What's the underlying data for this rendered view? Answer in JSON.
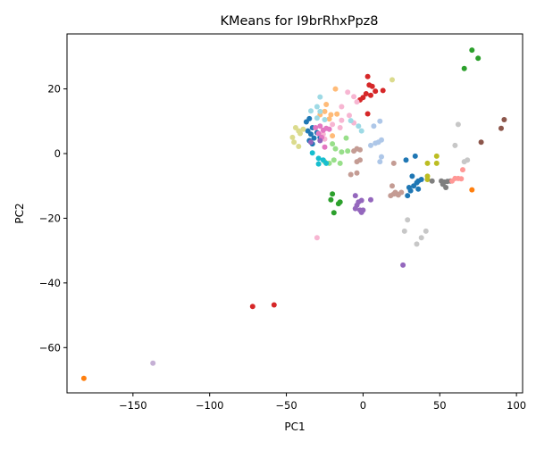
{
  "chart_data": {
    "type": "scatter",
    "title": "KMeans for I9brRhxPpz8",
    "xlabel": "PC1",
    "ylabel": "PC2",
    "xlim": [
      -193,
      104
    ],
    "ylim": [
      -74,
      37
    ],
    "x_ticks": [
      -150,
      -100,
      -50,
      0,
      50,
      100
    ],
    "y_ticks": [
      -60,
      -40,
      -20,
      0,
      20
    ],
    "grid": false,
    "legend": "none",
    "points": [
      {
        "x": -182,
        "y": -69.5,
        "color": "#ff7f0e"
      },
      {
        "x": -137,
        "y": -64.8,
        "color": "#c5b0d5"
      },
      {
        "x": -72,
        "y": -47.3,
        "color": "#d62728"
      },
      {
        "x": -58,
        "y": -46.8,
        "color": "#d62728"
      },
      {
        "x": -30,
        "y": -26.0,
        "color": "#f7b6d2"
      },
      {
        "x": 26,
        "y": -34.5,
        "color": "#9467bd"
      },
      {
        "x": 71,
        "y": 32.0,
        "color": "#2ca02c"
      },
      {
        "x": 75,
        "y": 29.5,
        "color": "#2ca02c"
      },
      {
        "x": 66,
        "y": 26.3,
        "color": "#2ca02c"
      },
      {
        "x": 19,
        "y": 22.8,
        "color": "#dbdb8d"
      },
      {
        "x": 3,
        "y": 23.8,
        "color": "#d62728"
      },
      {
        "x": 4,
        "y": 21.2,
        "color": "#d62728"
      },
      {
        "x": 6,
        "y": 20.8,
        "color": "#d62728"
      },
      {
        "x": 8,
        "y": 19.3,
        "color": "#d62728"
      },
      {
        "x": 13,
        "y": 19.5,
        "color": "#d62728"
      },
      {
        "x": 2,
        "y": 18.5,
        "color": "#d62728"
      },
      {
        "x": 5,
        "y": 18.0,
        "color": "#d62728"
      },
      {
        "x": 0,
        "y": 17.3,
        "color": "#d62728"
      },
      {
        "x": -2,
        "y": 16.6,
        "color": "#d62728"
      },
      {
        "x": 3,
        "y": 12.3,
        "color": "#d62728"
      },
      {
        "x": -10,
        "y": 19.0,
        "color": "#f7b6d2"
      },
      {
        "x": -6,
        "y": 17.6,
        "color": "#f7b6d2"
      },
      {
        "x": -4,
        "y": 16.0,
        "color": "#f7b6d2"
      },
      {
        "x": -14,
        "y": 14.5,
        "color": "#f7b6d2"
      },
      {
        "x": -9,
        "y": 11.8,
        "color": "#f7b6d2"
      },
      {
        "x": -14,
        "y": 10.3,
        "color": "#f7b6d2"
      },
      {
        "x": -6,
        "y": 9.5,
        "color": "#f7b6d2"
      },
      {
        "x": -20,
        "y": 9.0,
        "color": "#f7b6d2"
      },
      {
        "x": -15,
        "y": 8.0,
        "color": "#f7b6d2"
      },
      {
        "x": -25,
        "y": 4.5,
        "color": "#f7b6d2"
      },
      {
        "x": -26,
        "y": 6.0,
        "color": "#f7b6d2"
      },
      {
        "x": -18,
        "y": 20.0,
        "color": "#ffbb78"
      },
      {
        "x": -24,
        "y": 15.2,
        "color": "#ffbb78"
      },
      {
        "x": -25,
        "y": 13.0,
        "color": "#ffbb78"
      },
      {
        "x": -21,
        "y": 12.0,
        "color": "#ffbb78"
      },
      {
        "x": -17,
        "y": 12.2,
        "color": "#ffbb78"
      },
      {
        "x": -22,
        "y": 10.7,
        "color": "#ffbb78"
      },
      {
        "x": -28,
        "y": 12.0,
        "color": "#ffbb78"
      },
      {
        "x": -20,
        "y": 5.5,
        "color": "#ffbb78"
      },
      {
        "x": -28,
        "y": 17.5,
        "color": "#9edae5"
      },
      {
        "x": -34,
        "y": 13.2,
        "color": "#9edae5"
      },
      {
        "x": -30,
        "y": 14.5,
        "color": "#9edae5"
      },
      {
        "x": -28,
        "y": 13.0,
        "color": "#9edae5"
      },
      {
        "x": -30,
        "y": 11.0,
        "color": "#9edae5"
      },
      {
        "x": -25,
        "y": 10.5,
        "color": "#9edae5"
      },
      {
        "x": -3,
        "y": 8.5,
        "color": "#9edae5"
      },
      {
        "x": -1,
        "y": 7.0,
        "color": "#9edae5"
      },
      {
        "x": -8,
        "y": 10.2,
        "color": "#9edae5"
      },
      {
        "x": -37,
        "y": 9.8,
        "color": "#1f77b4"
      },
      {
        "x": -35,
        "y": 10.8,
        "color": "#1f77b4"
      },
      {
        "x": -33,
        "y": 8.0,
        "color": "#1f77b4"
      },
      {
        "x": -36,
        "y": 7.0,
        "color": "#1f77b4"
      },
      {
        "x": -34,
        "y": 6.0,
        "color": "#1f77b4"
      },
      {
        "x": -32,
        "y": 4.8,
        "color": "#1f77b4"
      },
      {
        "x": -35,
        "y": 4.0,
        "color": "#1f77b4"
      },
      {
        "x": -30,
        "y": 6.5,
        "color": "#1f77b4"
      },
      {
        "x": -28,
        "y": 5.0,
        "color": "#1f77b4"
      },
      {
        "x": -33,
        "y": 3.0,
        "color": "#1f77b4"
      },
      {
        "x": -44,
        "y": 8.0,
        "color": "#dbdb8d"
      },
      {
        "x": -42,
        "y": 7.0,
        "color": "#dbdb8d"
      },
      {
        "x": -41,
        "y": 6.2,
        "color": "#dbdb8d"
      },
      {
        "x": -46,
        "y": 5.0,
        "color": "#dbdb8d"
      },
      {
        "x": -45,
        "y": 3.5,
        "color": "#dbdb8d"
      },
      {
        "x": -42,
        "y": 2.2,
        "color": "#dbdb8d"
      },
      {
        "x": -39,
        "y": 7.5,
        "color": "#dbdb8d"
      },
      {
        "x": -28,
        "y": 8.5,
        "color": "#e377c2"
      },
      {
        "x": -26,
        "y": 7.2,
        "color": "#e377c2"
      },
      {
        "x": -24,
        "y": 7.8,
        "color": "#e377c2"
      },
      {
        "x": -29,
        "y": 6.2,
        "color": "#e377c2"
      },
      {
        "x": -27,
        "y": 5.0,
        "color": "#e377c2"
      },
      {
        "x": -22,
        "y": 7.5,
        "color": "#e377c2"
      },
      {
        "x": -31,
        "y": 8.0,
        "color": "#e377c2"
      },
      {
        "x": -25,
        "y": 2.0,
        "color": "#e377c2"
      },
      {
        "x": -28,
        "y": 4.0,
        "color": "#9467bd"
      },
      {
        "x": -34,
        "y": 3.5,
        "color": "#9467bd"
      },
      {
        "x": -20,
        "y": 3.0,
        "color": "#98df8a"
      },
      {
        "x": -18,
        "y": 1.5,
        "color": "#98df8a"
      },
      {
        "x": -11,
        "y": 4.8,
        "color": "#98df8a"
      },
      {
        "x": -14,
        "y": 0.5,
        "color": "#98df8a"
      },
      {
        "x": -10,
        "y": 0.8,
        "color": "#98df8a"
      },
      {
        "x": -22,
        "y": -3.0,
        "color": "#98df8a"
      },
      {
        "x": -19,
        "y": -2.0,
        "color": "#98df8a"
      },
      {
        "x": -15,
        "y": -3.0,
        "color": "#98df8a"
      },
      {
        "x": -25,
        "y": -2.5,
        "color": "#98df8a"
      },
      {
        "x": -33,
        "y": 0.2,
        "color": "#17becf"
      },
      {
        "x": -29,
        "y": -1.5,
        "color": "#17becf"
      },
      {
        "x": -26,
        "y": -2.0,
        "color": "#17becf"
      },
      {
        "x": -29,
        "y": -3.2,
        "color": "#17becf"
      },
      {
        "x": -24,
        "y": -3.0,
        "color": "#17becf"
      },
      {
        "x": -4,
        "y": 1.5,
        "color": "#c49c94"
      },
      {
        "x": -6,
        "y": 0.8,
        "color": "#c49c94"
      },
      {
        "x": -2,
        "y": 1.2,
        "color": "#c49c94"
      },
      {
        "x": -4,
        "y": -2.5,
        "color": "#c49c94"
      },
      {
        "x": -2,
        "y": -2.0,
        "color": "#c49c94"
      },
      {
        "x": -8,
        "y": -6.5,
        "color": "#c49c94"
      },
      {
        "x": -4,
        "y": -6.0,
        "color": "#c49c94"
      },
      {
        "x": 20,
        "y": -3.0,
        "color": "#c49c94"
      },
      {
        "x": 19,
        "y": -10.0,
        "color": "#c49c94"
      },
      {
        "x": 11,
        "y": 10.0,
        "color": "#aec7e8"
      },
      {
        "x": 12,
        "y": 4.2,
        "color": "#aec7e8"
      },
      {
        "x": 8,
        "y": 3.2,
        "color": "#aec7e8"
      },
      {
        "x": 5,
        "y": 2.5,
        "color": "#aec7e8"
      },
      {
        "x": 10,
        "y": 3.5,
        "color": "#aec7e8"
      },
      {
        "x": 12,
        "y": -1.0,
        "color": "#aec7e8"
      },
      {
        "x": 11,
        "y": -2.5,
        "color": "#aec7e8"
      },
      {
        "x": 7,
        "y": 8.5,
        "color": "#aec7e8"
      },
      {
        "x": 34,
        "y": -0.8,
        "color": "#1f77b4"
      },
      {
        "x": 28,
        "y": -2.0,
        "color": "#1f77b4"
      },
      {
        "x": 32,
        "y": -7.0,
        "color": "#1f77b4"
      },
      {
        "x": 36,
        "y": -8.5,
        "color": "#1f77b4"
      },
      {
        "x": 38,
        "y": -8.0,
        "color": "#1f77b4"
      },
      {
        "x": 35,
        "y": -9.0,
        "color": "#1f77b4"
      },
      {
        "x": 30,
        "y": -10.5,
        "color": "#1f77b4"
      },
      {
        "x": 31,
        "y": -11.5,
        "color": "#1f77b4"
      },
      {
        "x": 33,
        "y": -10.0,
        "color": "#1f77b4"
      },
      {
        "x": 36,
        "y": -11.0,
        "color": "#1f77b4"
      },
      {
        "x": 29,
        "y": -13.0,
        "color": "#1f77b4"
      },
      {
        "x": 42,
        "y": -3.0,
        "color": "#bcbd22"
      },
      {
        "x": 48,
        "y": -0.8,
        "color": "#bcbd22"
      },
      {
        "x": 48,
        "y": -3.0,
        "color": "#bcbd22"
      },
      {
        "x": 42,
        "y": -7.0,
        "color": "#bcbd22"
      },
      {
        "x": 42,
        "y": -8.0,
        "color": "#bcbd22"
      },
      {
        "x": 45,
        "y": -8.5,
        "color": "#7f7f7f"
      },
      {
        "x": 51,
        "y": -8.5,
        "color": "#7f7f7f"
      },
      {
        "x": 53,
        "y": -8.8,
        "color": "#7f7f7f"
      },
      {
        "x": 55,
        "y": -8.6,
        "color": "#7f7f7f"
      },
      {
        "x": 57,
        "y": -8.5,
        "color": "#7f7f7f"
      },
      {
        "x": 52,
        "y": -9.5,
        "color": "#7f7f7f"
      },
      {
        "x": 54,
        "y": -10.5,
        "color": "#7f7f7f"
      },
      {
        "x": 60,
        "y": -7.7,
        "color": "#ff9896"
      },
      {
        "x": 62,
        "y": -7.7,
        "color": "#ff9896"
      },
      {
        "x": 64,
        "y": -7.8,
        "color": "#ff9896"
      },
      {
        "x": 58,
        "y": -8.5,
        "color": "#ff9896"
      },
      {
        "x": 65,
        "y": -5.0,
        "color": "#ff9896"
      },
      {
        "x": 62,
        "y": 9.0,
        "color": "#c7c7c7"
      },
      {
        "x": 60,
        "y": 2.5,
        "color": "#c7c7c7"
      },
      {
        "x": 66,
        "y": -2.5,
        "color": "#c7c7c7"
      },
      {
        "x": 68,
        "y": -2.0,
        "color": "#c7c7c7"
      },
      {
        "x": 29,
        "y": -20.5,
        "color": "#c7c7c7"
      },
      {
        "x": 27,
        "y": -24.0,
        "color": "#c7c7c7"
      },
      {
        "x": 41,
        "y": -24.0,
        "color": "#c7c7c7"
      },
      {
        "x": 38,
        "y": -26.0,
        "color": "#c7c7c7"
      },
      {
        "x": 35,
        "y": -28.0,
        "color": "#c7c7c7"
      },
      {
        "x": 77,
        "y": 3.5,
        "color": "#8c564b"
      },
      {
        "x": 90,
        "y": 7.8,
        "color": "#8c564b"
      },
      {
        "x": 92,
        "y": 10.5,
        "color": "#8c564b"
      },
      {
        "x": 71,
        "y": -11.2,
        "color": "#ff7f0e"
      },
      {
        "x": 18,
        "y": -13.0,
        "color": "#c49c94"
      },
      {
        "x": 20,
        "y": -12.5,
        "color": "#c49c94"
      },
      {
        "x": 22,
        "y": -12.5,
        "color": "#c49c94"
      },
      {
        "x": 25,
        "y": -12.0,
        "color": "#c49c94"
      },
      {
        "x": 21,
        "y": -12.0,
        "color": "#c49c94"
      },
      {
        "x": 23,
        "y": -12.8,
        "color": "#c49c94"
      },
      {
        "x": -5,
        "y": -13.0,
        "color": "#9467bd"
      },
      {
        "x": -3,
        "y": -15.0,
        "color": "#9467bd"
      },
      {
        "x": -1,
        "y": -14.5,
        "color": "#9467bd"
      },
      {
        "x": -4,
        "y": -16.0,
        "color": "#9467bd"
      },
      {
        "x": -5,
        "y": -17.0,
        "color": "#9467bd"
      },
      {
        "x": -2,
        "y": -17.5,
        "color": "#9467bd"
      },
      {
        "x": 0,
        "y": -17.5,
        "color": "#9467bd"
      },
      {
        "x": -1,
        "y": -18.2,
        "color": "#9467bd"
      },
      {
        "x": 5,
        "y": -14.3,
        "color": "#9467bd"
      },
      {
        "x": -20,
        "y": -12.5,
        "color": "#2ca02c"
      },
      {
        "x": -21,
        "y": -14.3,
        "color": "#2ca02c"
      },
      {
        "x": -15,
        "y": -15.0,
        "color": "#2ca02c"
      },
      {
        "x": -16,
        "y": -15.5,
        "color": "#2ca02c"
      },
      {
        "x": -19,
        "y": -18.3,
        "color": "#2ca02c"
      }
    ]
  }
}
